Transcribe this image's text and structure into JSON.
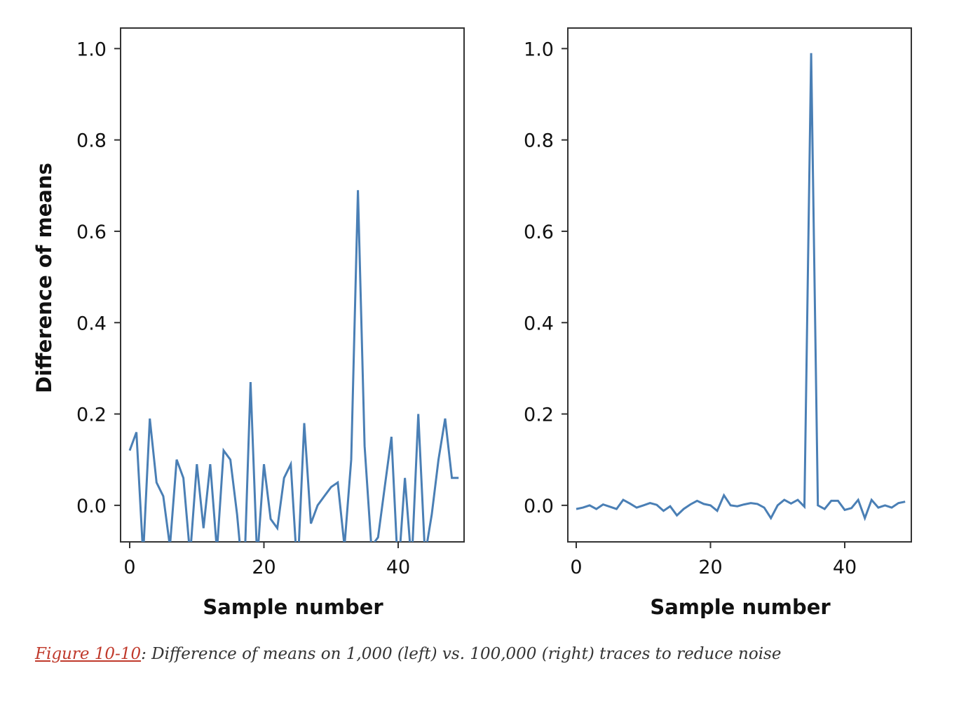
{
  "chart_data": [
    {
      "type": "line",
      "xlabel": "Sample number",
      "ylabel": "Difference of means",
      "ylim": [
        -0.08,
        1.045
      ],
      "xlim": [
        -2,
        50
      ],
      "xticks": [
        "0",
        "20",
        "40"
      ],
      "yticks": [
        "0.0",
        "0.2",
        "0.4",
        "0.6",
        "0.8",
        "1.0"
      ],
      "line_color": "#4a7fb5",
      "series": [
        {
          "x": [
            0,
            1,
            2,
            3,
            4,
            5,
            6,
            7,
            8,
            9,
            10,
            11,
            12,
            13,
            14,
            15,
            16,
            17,
            18,
            19,
            20,
            21,
            22,
            23,
            24,
            25,
            26,
            27,
            28,
            29,
            30,
            31,
            32,
            33,
            34,
            35,
            36,
            37,
            38,
            39,
            40,
            41,
            42,
            43,
            44,
            45,
            46,
            47,
            48,
            49
          ],
          "values": [
            0.12,
            0.16,
            -0.11,
            0.19,
            0.05,
            0.02,
            -0.09,
            0.1,
            0.06,
            -0.11,
            0.09,
            -0.05,
            0.09,
            -0.1,
            0.12,
            0.1,
            -0.02,
            -0.18,
            0.27,
            -0.12,
            0.09,
            -0.03,
            -0.05,
            0.06,
            0.09,
            -0.15,
            0.18,
            -0.04,
            0.0,
            0.02,
            0.04,
            0.05,
            -0.09,
            0.1,
            0.69,
            0.13,
            -0.09,
            -0.07,
            0.04,
            0.15,
            -0.15,
            0.06,
            -0.13,
            0.2,
            -0.11,
            -0.02,
            0.1,
            0.19,
            0.06,
            0.06
          ]
        }
      ]
    },
    {
      "type": "line",
      "xlabel": "Sample number",
      "ylabel": "",
      "ylim": [
        -0.08,
        1.045
      ],
      "xlim": [
        -2,
        50
      ],
      "xticks": [
        "0",
        "20",
        "40"
      ],
      "yticks": [
        "0.0",
        "0.2",
        "0.4",
        "0.6",
        "0.8",
        "1.0"
      ],
      "line_color": "#4a7fb5",
      "series": [
        {
          "x": [
            0,
            1,
            2,
            3,
            4,
            5,
            6,
            7,
            8,
            9,
            10,
            11,
            12,
            13,
            14,
            15,
            16,
            17,
            18,
            19,
            20,
            21,
            22,
            23,
            24,
            25,
            26,
            27,
            28,
            29,
            30,
            31,
            32,
            33,
            34,
            35,
            36,
            37,
            38,
            39,
            40,
            41,
            42,
            43,
            44,
            45,
            46,
            47,
            48,
            49
          ],
          "values": [
            -0.008,
            -0.005,
            0.0,
            -0.008,
            0.002,
            -0.003,
            -0.008,
            0.012,
            0.004,
            -0.005,
            0.0,
            0.005,
            0.001,
            -0.012,
            -0.002,
            -0.022,
            -0.008,
            0.002,
            0.01,
            0.003,
            0.0,
            -0.012,
            0.022,
            0.0,
            -0.002,
            0.002,
            0.005,
            0.003,
            -0.005,
            -0.028,
            0.0,
            0.012,
            0.004,
            0.012,
            -0.003,
            0.99,
            0.0,
            -0.008,
            0.01,
            0.01,
            -0.01,
            -0.006,
            0.012,
            -0.028,
            0.012,
            -0.005,
            0.0,
            -0.005,
            0.005,
            0.008
          ]
        }
      ]
    }
  ],
  "caption": {
    "link_text": "Figure 10-10",
    "text": ": Difference of means on 1,000 (left) vs. 100,000 (right) traces to reduce noise"
  }
}
